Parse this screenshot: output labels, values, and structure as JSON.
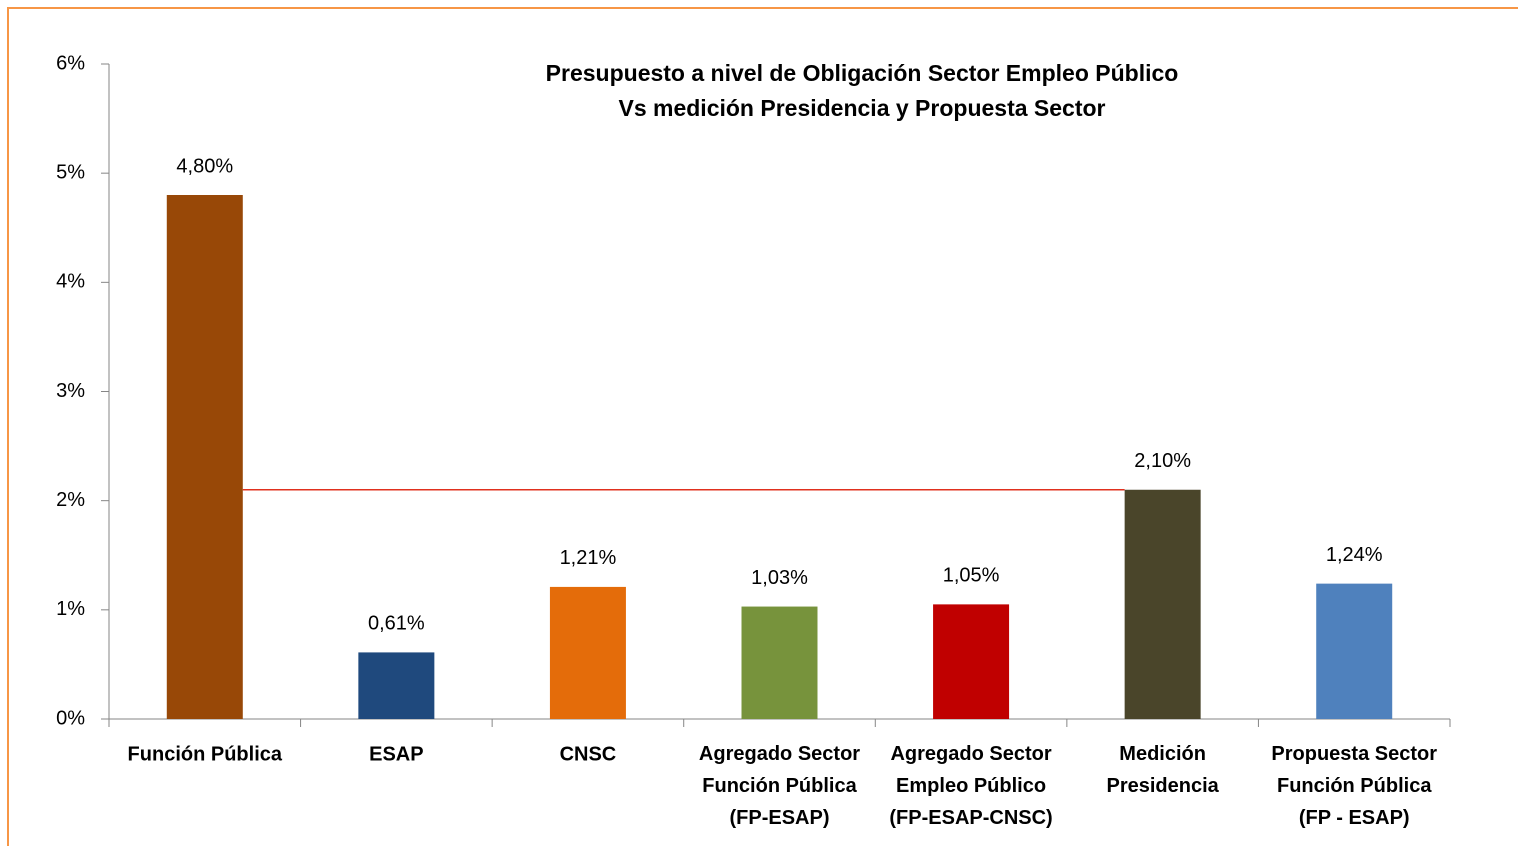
{
  "chart_data": {
    "type": "bar",
    "title": "Presupuesto a nivel de Obligación Sector Empleo Público\nVs medición Presidencia y Propuesta Sector",
    "categories": [
      "Función Pública",
      "ESAP",
      "CNSC",
      "Agregado Sector\nFunción Pública\n(FP-ESAP)",
      "Agregado Sector\nEmpleo Público\n(FP-ESAP-CNSC)",
      "Medición\nPresidencia",
      "Propuesta Sector\nFunción Pública\n(FP - ESAP)"
    ],
    "values": [
      4.8,
      0.61,
      1.21,
      1.03,
      1.05,
      2.1,
      1.24
    ],
    "value_labels": [
      "4,80%",
      "0,61%",
      "1,21%",
      "1,03%",
      "1,05%",
      "2,10%",
      "1,24%"
    ],
    "colors": [
      "#984807",
      "#1f497d",
      "#e46c0a",
      "#77933c",
      "#c00000",
      "#4a452a",
      "#4f81bd"
    ],
    "ylim": [
      0,
      6
    ],
    "yticks": [
      {
        "value": 0,
        "label": "0%"
      },
      {
        "value": 1,
        "label": "1%"
      },
      {
        "value": 2,
        "label": "2%"
      },
      {
        "value": 3,
        "label": "3%"
      },
      {
        "value": 4,
        "label": "4%"
      },
      {
        "value": 5,
        "label": "5%"
      },
      {
        "value": 6,
        "label": "6%"
      }
    ],
    "grid": false
  }
}
